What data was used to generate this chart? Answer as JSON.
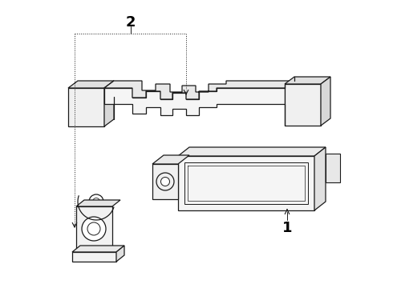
{
  "bg_color": "#ffffff",
  "line_color": "#1a1a1a",
  "label_color": "#000000",
  "label1": "1",
  "label2": "2",
  "fig_width": 4.9,
  "fig_height": 3.6,
  "dpi": 100
}
